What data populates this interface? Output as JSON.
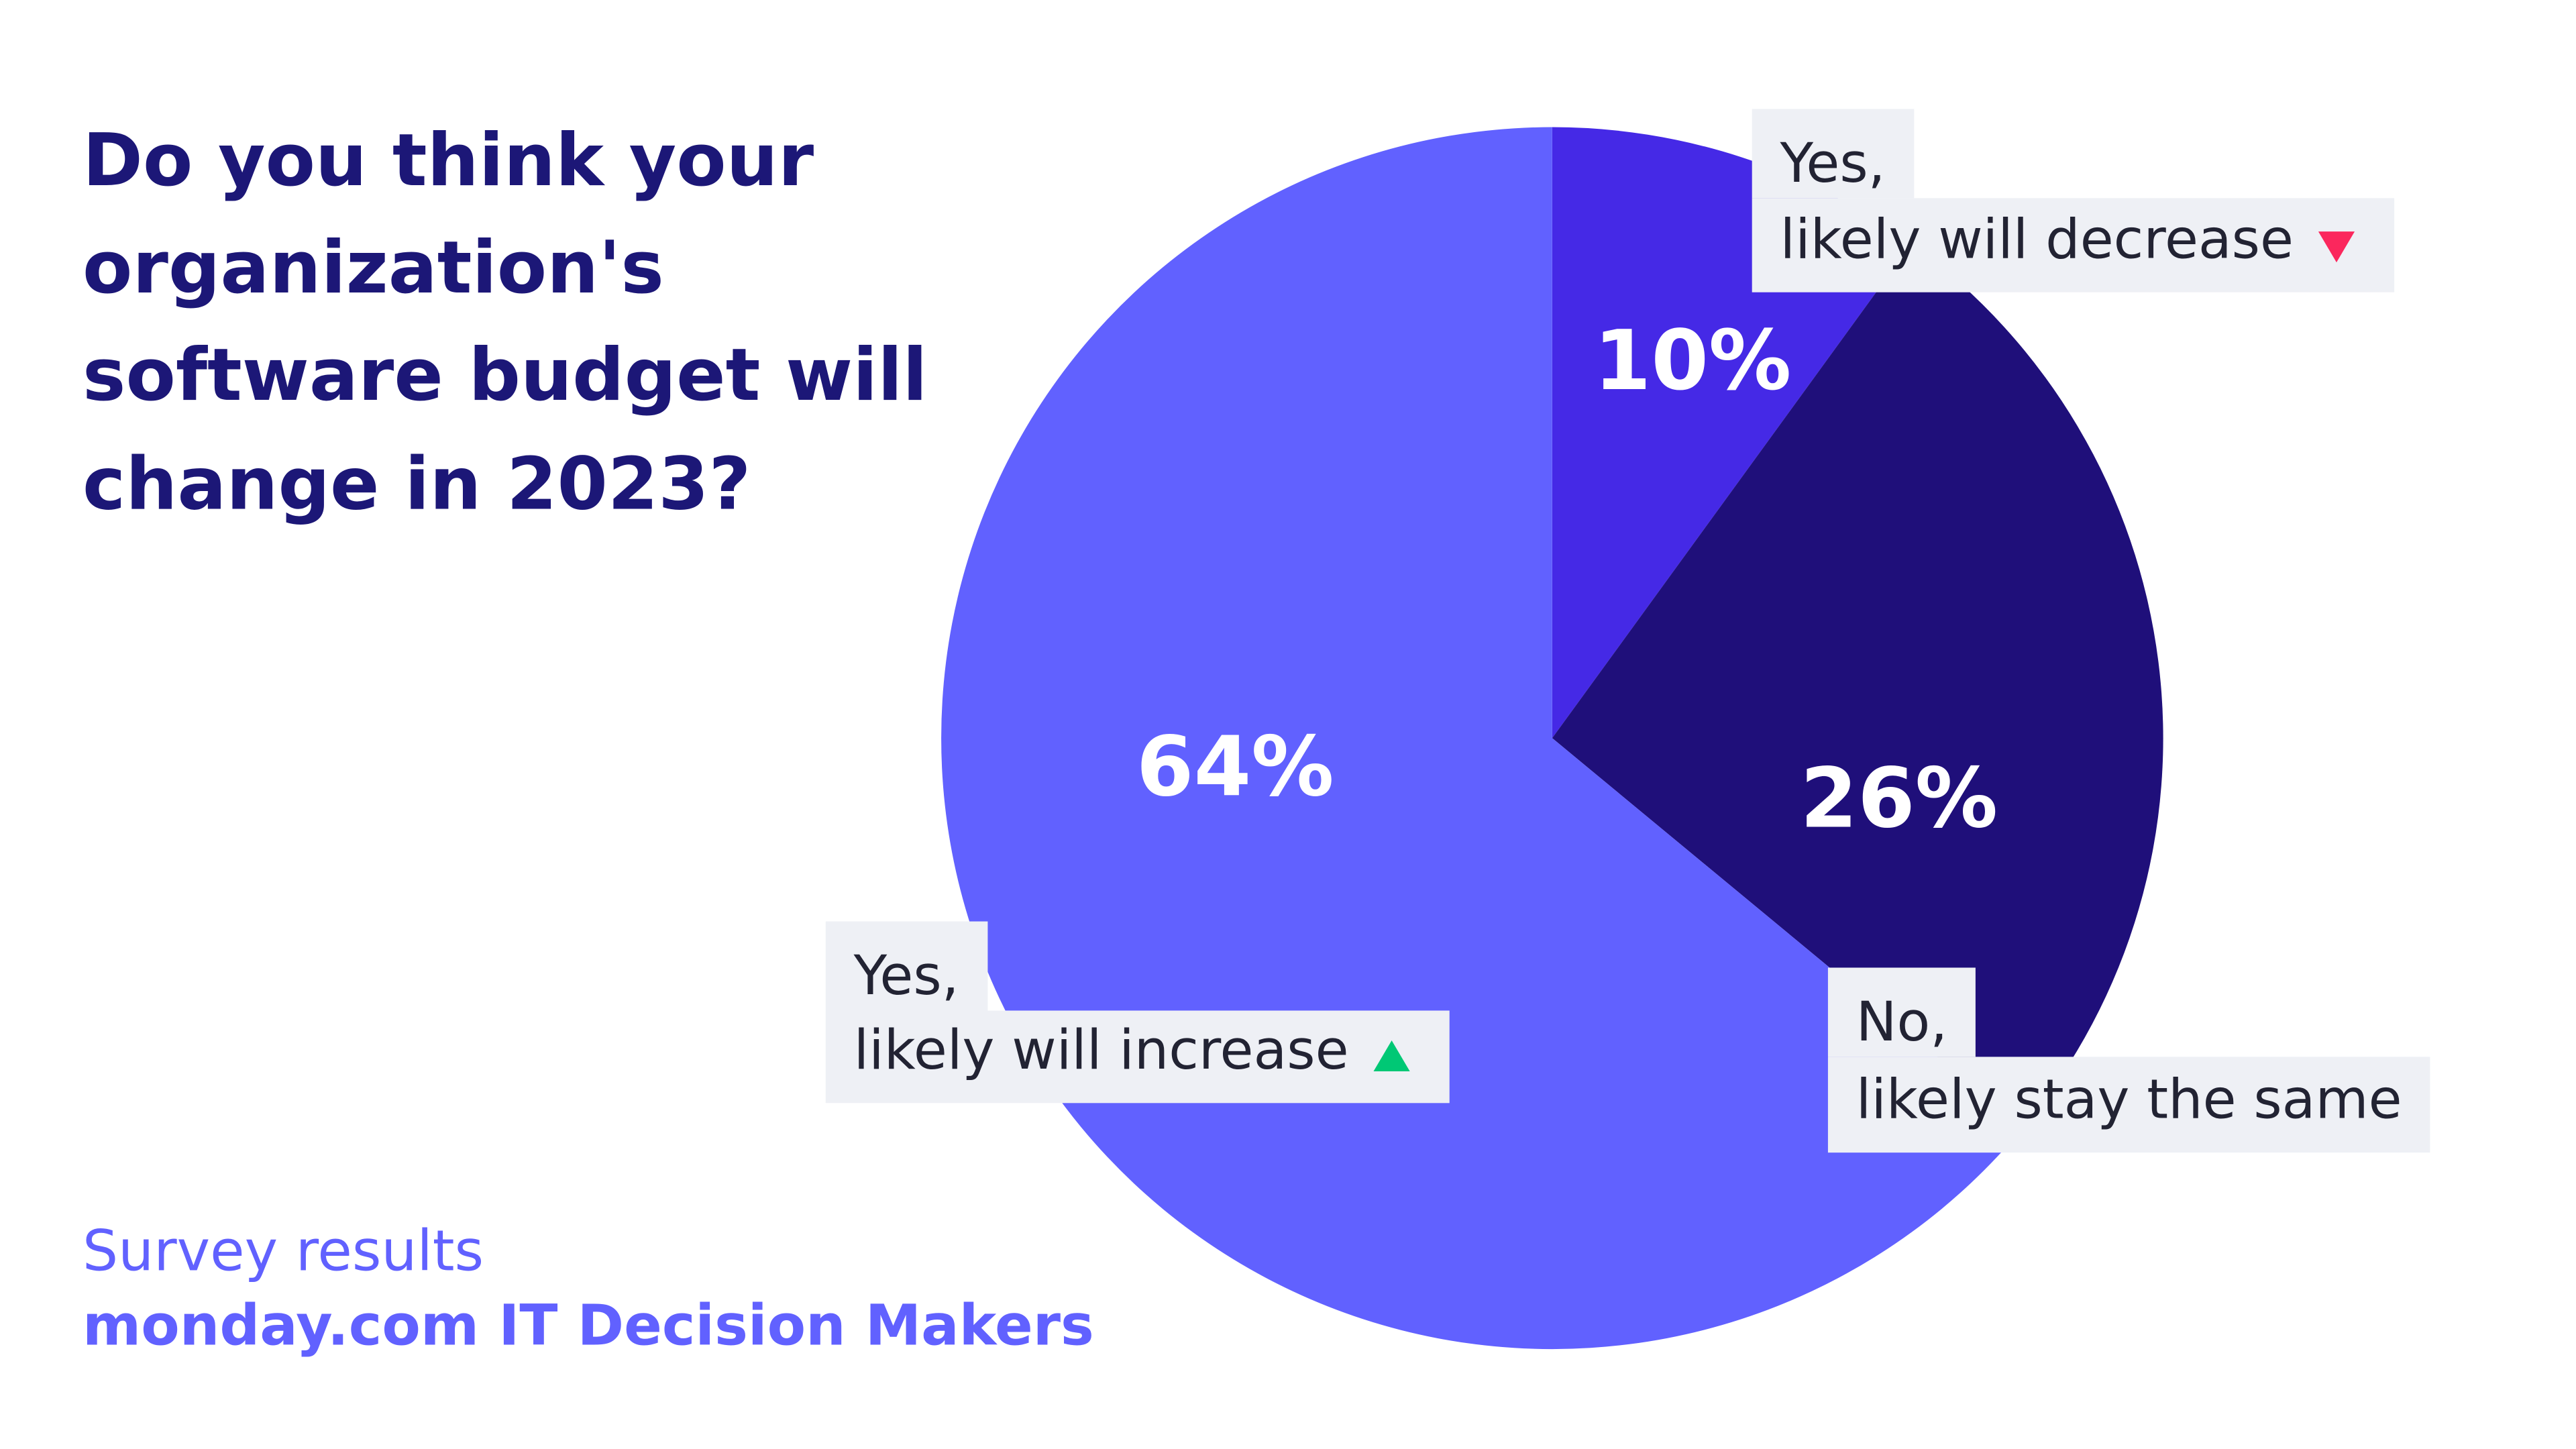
{
  "chart_data": {
    "type": "pie",
    "title": [
      "Do you think your",
      "organization's",
      "software budget will",
      "change in 2023?"
    ],
    "categories": [
      [
        "Yes,",
        "likely will decrease"
      ],
      [
        "No,",
        "likely stay the same"
      ],
      [
        "Yes,",
        "likely will increase"
      ]
    ],
    "values": [
      10,
      26,
      64
    ],
    "value_labels": [
      "10%",
      "26%",
      "64%"
    ],
    "colors": [
      "#4529e6",
      "#1f0f7a",
      "#6161ff"
    ],
    "subtitle": "Survey results",
    "source": "monday.com IT Decision Makers"
  }
}
